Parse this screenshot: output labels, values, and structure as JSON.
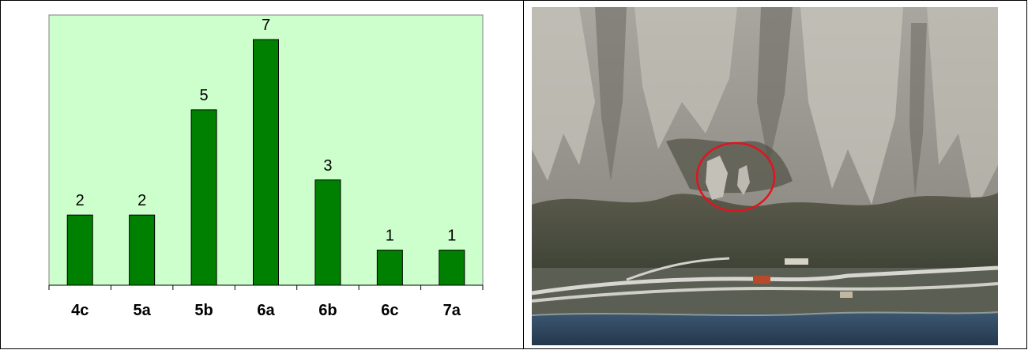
{
  "chart_data": {
    "type": "bar",
    "categories": [
      "4c",
      "5a",
      "5b",
      "6a",
      "6b",
      "6c",
      "7a"
    ],
    "values": [
      2,
      2,
      5,
      7,
      3,
      1,
      1
    ],
    "title": "",
    "xlabel": "",
    "ylabel": "",
    "ylim": [
      0,
      7.7
    ],
    "grid": false,
    "legend": "none",
    "colors": {
      "bar": "#008000",
      "plot_background": "#ccffcc",
      "axis": "#000000"
    }
  },
  "photo": {
    "subject": "rock-face-aerial-photo",
    "colors": {
      "rock": "#b9b6ae",
      "forest": "#4a4b3f",
      "water": "#2f4a63",
      "highlight_circle": "#e0141e"
    }
  }
}
